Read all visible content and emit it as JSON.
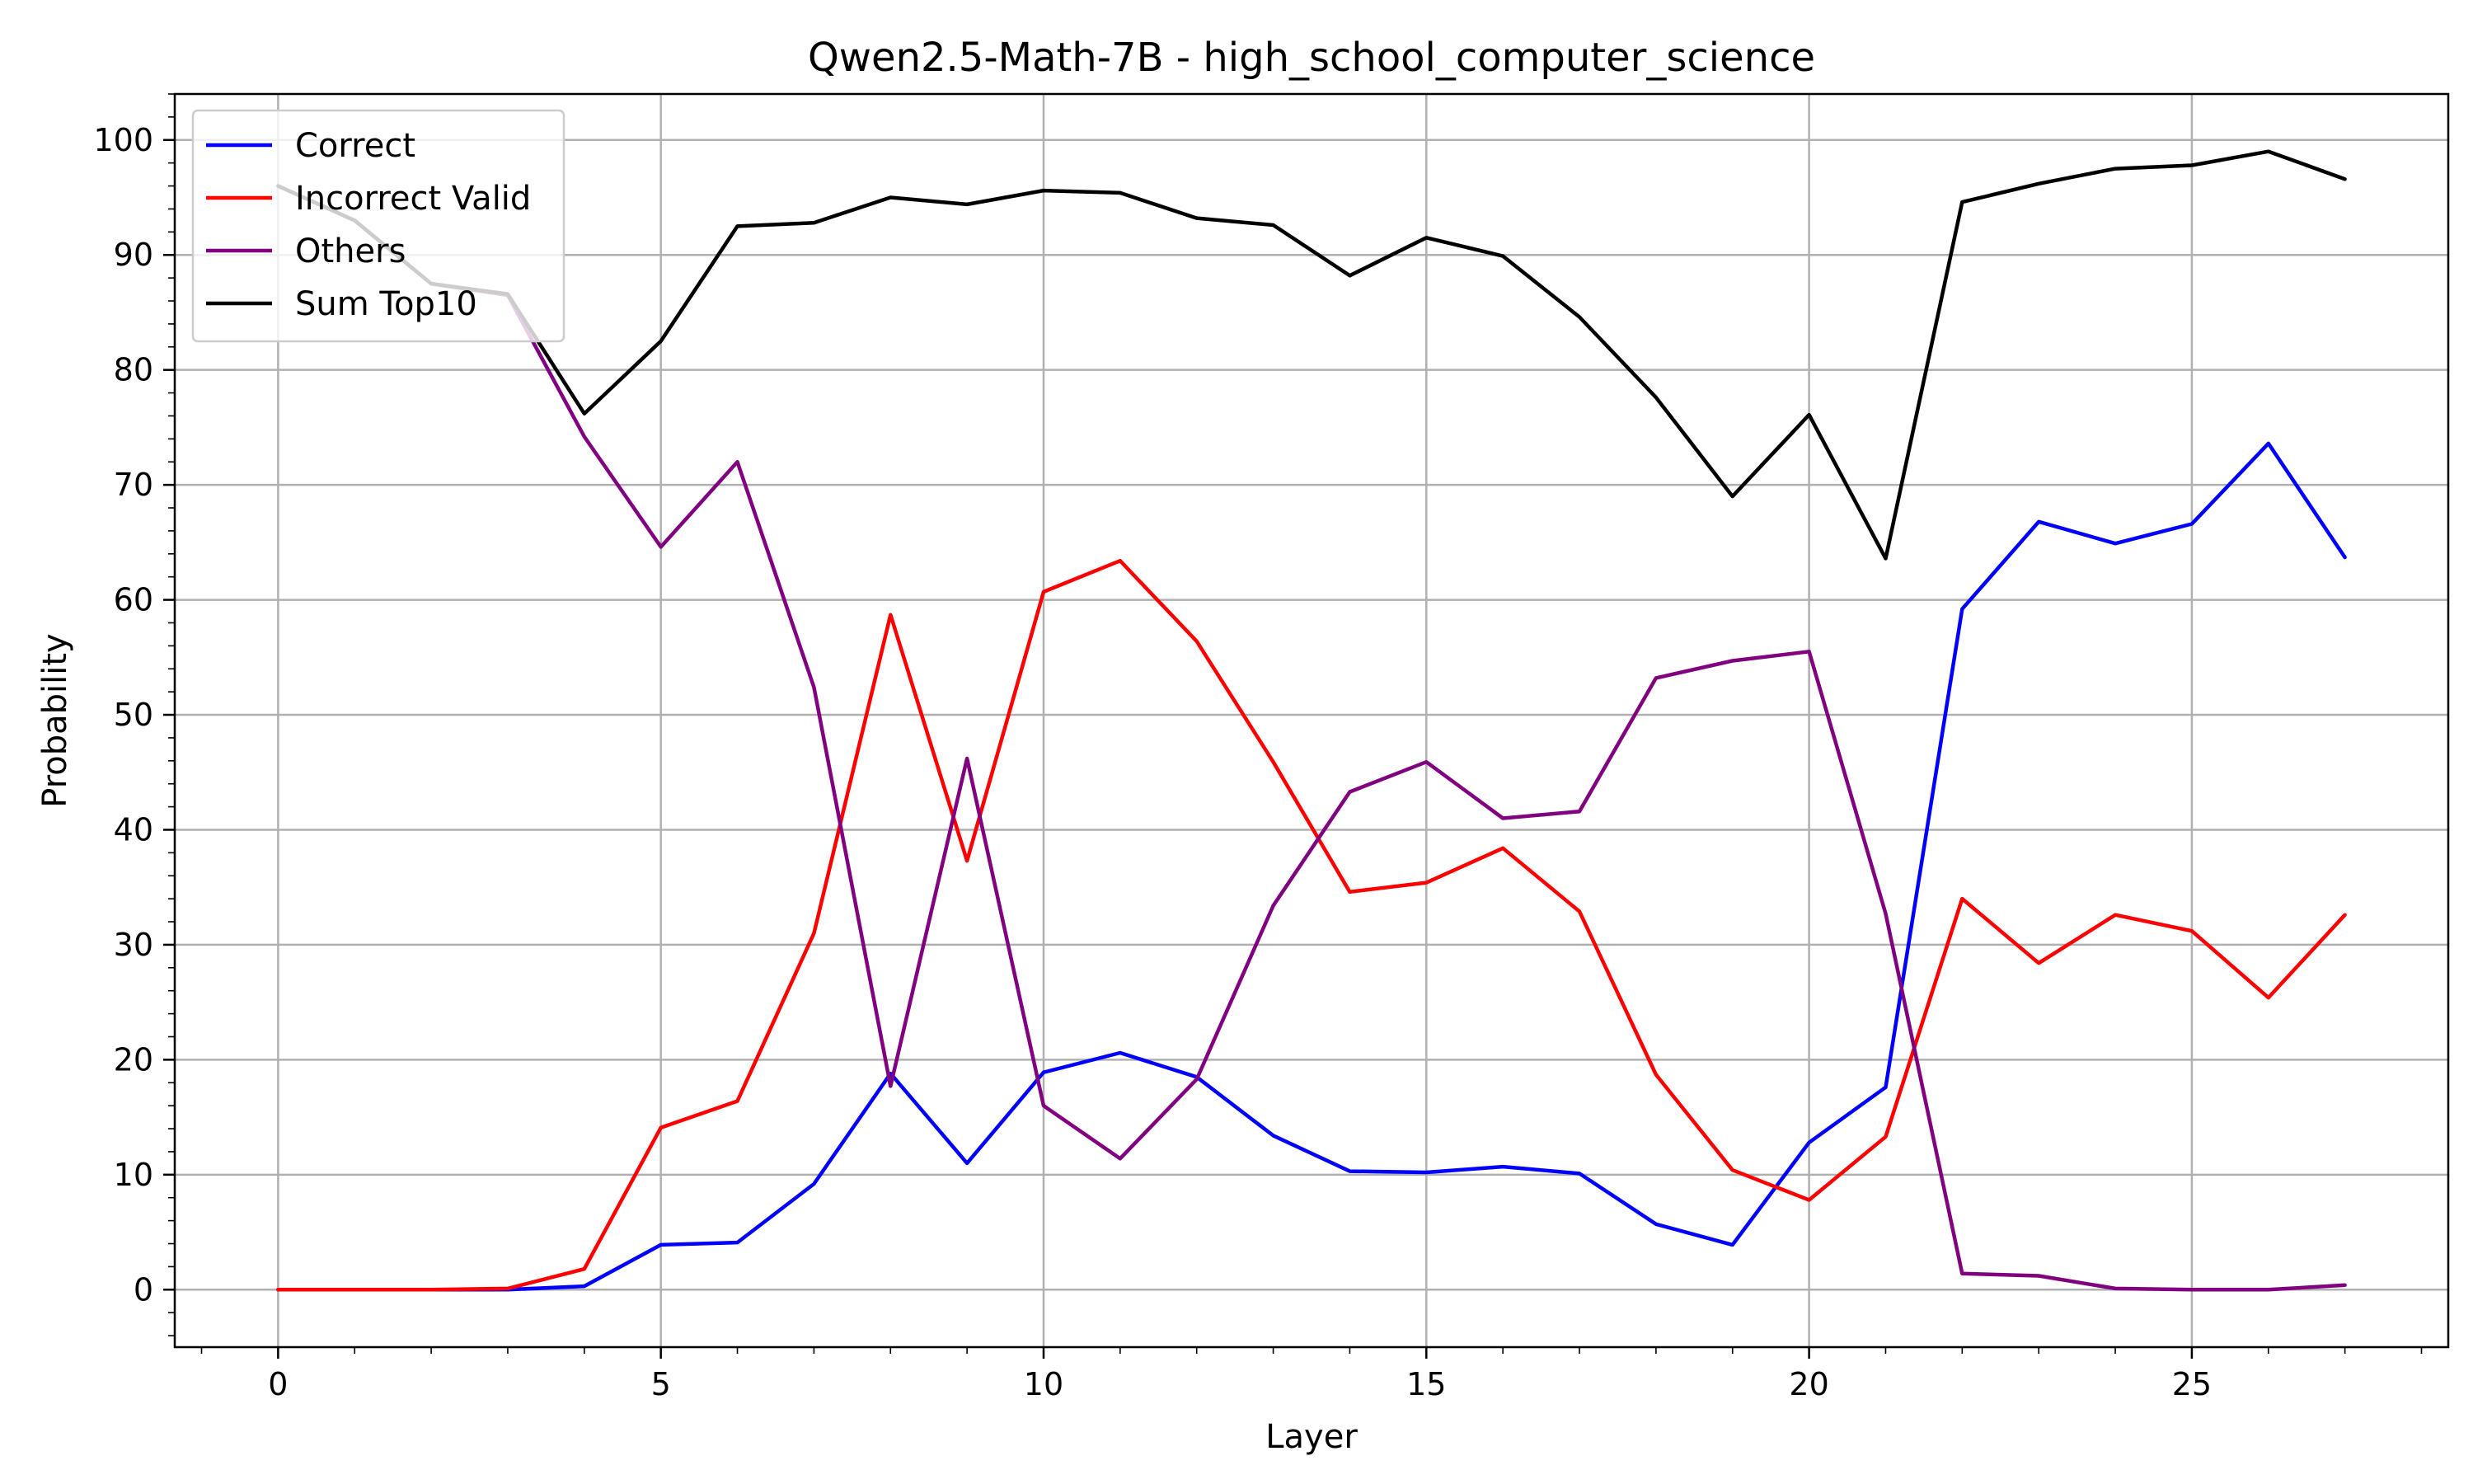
{
  "chart_data": {
    "type": "line",
    "title": "Qwen2.5-Math-7B - high_school_computer_science",
    "xlabel": "Layer",
    "ylabel": "Probability",
    "xlim": [
      -1.35,
      28.35
    ],
    "ylim": [
      -5,
      104
    ],
    "xticks": [
      0,
      5,
      10,
      15,
      20,
      25
    ],
    "yticks": [
      0,
      10,
      20,
      30,
      40,
      50,
      60,
      70,
      80,
      90,
      100
    ],
    "grid": true,
    "legend_position": "top-left",
    "x": [
      0,
      1,
      2,
      3,
      4,
      5,
      6,
      7,
      8,
      9,
      10,
      11,
      12,
      13,
      14,
      15,
      16,
      17,
      18,
      19,
      20,
      21,
      22,
      23,
      24,
      25,
      26,
      27
    ],
    "series": [
      {
        "name": "Correct",
        "color": "#0000ff",
        "values": [
          0,
          0,
          0,
          0,
          0.3,
          3.9,
          4.1,
          9.2,
          18.8,
          11.0,
          18.9,
          20.6,
          18.5,
          13.4,
          10.3,
          10.2,
          10.7,
          10.1,
          5.7,
          3.9,
          12.8,
          17.6,
          59.2,
          66.8,
          64.9,
          66.6,
          73.6,
          63.7
        ]
      },
      {
        "name": "Incorrect Valid",
        "color": "#ff0000",
        "values": [
          0,
          0,
          0,
          0.1,
          1.8,
          14.1,
          16.4,
          31.0,
          58.7,
          37.3,
          60.7,
          63.4,
          56.4,
          45.9,
          34.6,
          35.4,
          38.4,
          32.9,
          18.7,
          10.4,
          7.8,
          13.3,
          34.0,
          28.4,
          32.6,
          31.2,
          25.4,
          32.6
        ]
      },
      {
        "name": "Others",
        "color": "#800080",
        "values": [
          96.0,
          93.0,
          87.5,
          86.5,
          74.2,
          64.6,
          72.0,
          52.4,
          17.7,
          46.2,
          16.0,
          11.4,
          18.3,
          33.4,
          43.3,
          45.9,
          41.0,
          41.6,
          53.2,
          54.7,
          55.5,
          32.7,
          1.4,
          1.2,
          0.1,
          0,
          0,
          0.4
        ]
      },
      {
        "name": "Sum Top10",
        "color": "#000000",
        "values": [
          96.0,
          93.0,
          87.5,
          86.6,
          76.2,
          82.5,
          92.5,
          92.8,
          95.0,
          94.4,
          95.6,
          95.4,
          93.2,
          92.6,
          88.2,
          91.5,
          89.9,
          84.6,
          77.6,
          69.0,
          76.1,
          63.6,
          94.6,
          96.2,
          97.5,
          97.8,
          99.0,
          96.6
        ]
      }
    ]
  }
}
